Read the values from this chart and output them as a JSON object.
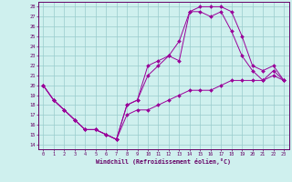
{
  "xlabel": "Windchill (Refroidissement éolien,°C)",
  "background_color": "#cff0ee",
  "line_color": "#990099",
  "grid_color": "#99cccc",
  "xlim": [
    -0.5,
    23.5
  ],
  "ylim": [
    13.5,
    28.5
  ],
  "yticks": [
    14,
    15,
    16,
    17,
    18,
    19,
    20,
    21,
    22,
    23,
    24,
    25,
    26,
    27,
    28
  ],
  "xticks": [
    0,
    1,
    2,
    3,
    4,
    5,
    6,
    7,
    8,
    9,
    10,
    11,
    12,
    13,
    14,
    15,
    16,
    17,
    18,
    19,
    20,
    21,
    22,
    23
  ],
  "curve1_x": [
    0,
    1,
    2,
    3,
    4,
    5,
    6,
    7,
    8,
    9,
    10,
    11,
    12,
    13,
    14,
    15,
    16,
    17,
    18,
    19,
    20,
    21,
    22,
    23
  ],
  "curve1_y": [
    20.0,
    18.5,
    17.5,
    16.5,
    15.5,
    15.5,
    15.0,
    14.5,
    18.0,
    18.5,
    22.0,
    22.5,
    23.0,
    22.5,
    27.5,
    28.0,
    28.0,
    28.0,
    27.5,
    25.0,
    22.0,
    21.5,
    22.0,
    20.5
  ],
  "curve2_x": [
    0,
    1,
    2,
    3,
    4,
    5,
    6,
    7,
    8,
    9,
    10,
    11,
    12,
    13,
    14,
    15,
    16,
    17,
    18,
    19,
    20,
    21,
    22,
    23
  ],
  "curve2_y": [
    20.0,
    18.5,
    17.5,
    16.5,
    15.5,
    15.5,
    15.0,
    14.5,
    18.0,
    18.5,
    21.0,
    22.0,
    23.0,
    24.5,
    27.5,
    27.5,
    27.0,
    27.5,
    25.5,
    23.0,
    21.5,
    20.5,
    21.5,
    20.5
  ],
  "curve3_x": [
    0,
    1,
    2,
    3,
    4,
    5,
    6,
    7,
    8,
    9,
    10,
    11,
    12,
    13,
    14,
    15,
    16,
    17,
    18,
    19,
    20,
    21,
    22,
    23
  ],
  "curve3_y": [
    20.0,
    18.5,
    17.5,
    16.5,
    15.5,
    15.5,
    15.0,
    14.5,
    17.0,
    17.5,
    17.5,
    18.0,
    18.5,
    19.0,
    19.5,
    19.5,
    19.5,
    20.0,
    20.5,
    20.5,
    20.5,
    20.5,
    21.0,
    20.5
  ]
}
